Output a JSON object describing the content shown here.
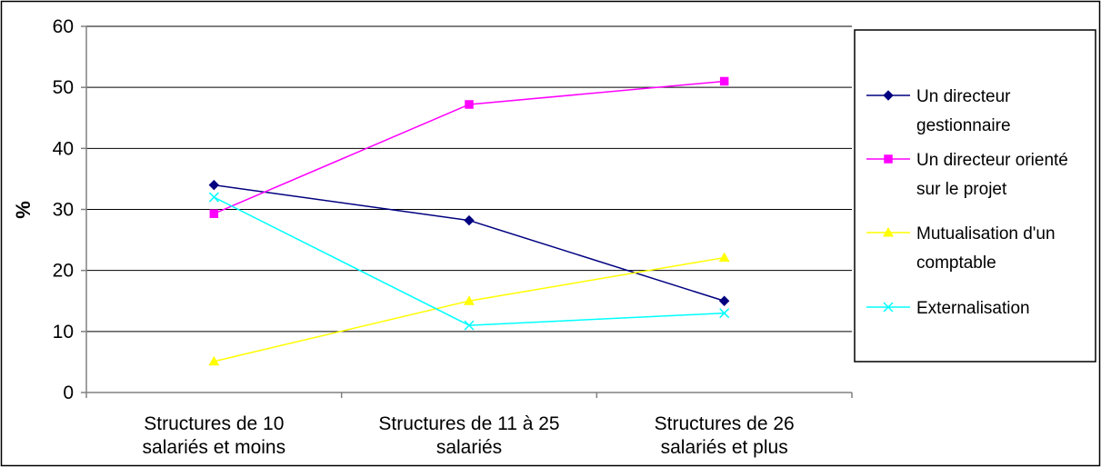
{
  "chart_data": {
    "type": "line",
    "categories": [
      [
        "Structures de 10",
        "salariés et moins"
      ],
      [
        "Structures de 11 à 25",
        "salariés"
      ],
      [
        "Structures de 26",
        "salariés et plus"
      ]
    ],
    "ylabel": "%",
    "ylim": [
      0,
      60
    ],
    "yticks": [
      0,
      10,
      20,
      30,
      40,
      50,
      60
    ],
    "grid": true,
    "legend_position": "right",
    "series": [
      {
        "name": "Un directeur gestionnaire",
        "legend_lines": [
          "Un directeur",
          "gestionnaire"
        ],
        "values": [
          34,
          28.2,
          15
        ],
        "color": "#000080",
        "marker": "diamond"
      },
      {
        "name": "Un directeur orienté sur le projet",
        "legend_lines": [
          "Un directeur orienté",
          "sur le projet"
        ],
        "values": [
          29.3,
          47.2,
          51
        ],
        "color": "#ff00ff",
        "marker": "square"
      },
      {
        "name": "Mutualisation d'un comptable",
        "legend_lines": [
          "Mutualisation d'un",
          "comptable"
        ],
        "values": [
          5.1,
          15,
          22.1
        ],
        "color": "#ffff00",
        "marker": "triangle"
      },
      {
        "name": "Externalisation",
        "legend_lines": [
          "Externalisation"
        ],
        "values": [
          32,
          11,
          13
        ],
        "color": "#00ffff",
        "marker": "x"
      }
    ]
  }
}
